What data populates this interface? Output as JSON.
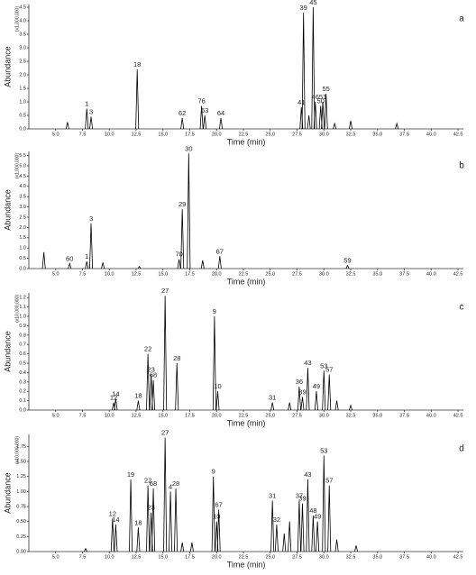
{
  "chart_data": [
    {
      "type": "line",
      "panel_label": "a",
      "ylabel": "Abundance",
      "multiplier": "(x1,000,000)",
      "xlabel": "Time (min)",
      "xlim": [
        2.5,
        43
      ],
      "ylim": [
        0,
        4.6
      ],
      "xticks": [
        {
          "value": 5,
          "label": "5.0"
        },
        {
          "value": 7.5,
          "label": "7.5"
        },
        {
          "value": 10,
          "label": "10.0"
        },
        {
          "value": 12.5,
          "label": "12.5"
        },
        {
          "value": 15,
          "label": "15.0"
        },
        {
          "value": 17.5,
          "label": "17.5"
        },
        {
          "value": 20,
          "label": "20.0"
        },
        {
          "value": 22.5,
          "label": "22.5"
        },
        {
          "value": 25,
          "label": "25.0"
        },
        {
          "value": 27.5,
          "label": "27.5"
        },
        {
          "value": 30,
          "label": "30.0"
        },
        {
          "value": 32.5,
          "label": "32.5"
        },
        {
          "value": 35,
          "label": "35.0"
        },
        {
          "value": 37.5,
          "label": "37.5"
        },
        {
          "value": 40,
          "label": "40.0"
        },
        {
          "value": 42.5,
          "label": "42.5"
        }
      ],
      "yticks": [
        {
          "value": 0,
          "label": "0.0"
        },
        {
          "value": 0.5,
          "label": "0.5"
        },
        {
          "value": 1,
          "label": "1.0"
        },
        {
          "value": 1.5,
          "label": "1.5"
        },
        {
          "value": 2,
          "label": "2.0"
        },
        {
          "value": 2.5,
          "label": "2.5"
        },
        {
          "value": 3,
          "label": "3.0"
        },
        {
          "value": 3.5,
          "label": "3.5"
        },
        {
          "value": 4,
          "label": "4.0"
        },
        {
          "value": 4.5,
          "label": "4.5"
        }
      ],
      "color": "#000000",
      "x": [
        6.1,
        7.9,
        8.3,
        12.6,
        16.8,
        18.6,
        18.9,
        20.4,
        27.9,
        28.1,
        28.6,
        29.0,
        29.2,
        29.7,
        29.9,
        30.2,
        31.0,
        32.5,
        36.8
      ],
      "values": [
        0.25,
        0.75,
        0.45,
        2.2,
        0.4,
        0.85,
        0.5,
        0.4,
        0.8,
        4.3,
        0.5,
        4.5,
        1.0,
        0.85,
        1.0,
        1.3,
        0.2,
        0.3,
        0.2
      ],
      "labels": [
        null,
        "1",
        "3",
        "18",
        "62",
        "76",
        "63",
        "64",
        "41",
        "39",
        null,
        "45",
        "46",
        "50",
        "51",
        "55",
        null,
        null,
        null
      ]
    },
    {
      "type": "line",
      "panel_label": "b",
      "ylabel": "Abundance",
      "multiplier": "(x1,000,000)",
      "xlabel": "Time (min)",
      "xlim": [
        2.5,
        43
      ],
      "ylim": [
        0,
        5.7
      ],
      "xticks": [
        {
          "value": 5,
          "label": "5.0"
        },
        {
          "value": 7.5,
          "label": "7.5"
        },
        {
          "value": 10,
          "label": "10.0"
        },
        {
          "value": 12.5,
          "label": "12.5"
        },
        {
          "value": 15,
          "label": "15.0"
        },
        {
          "value": 17.5,
          "label": "17.5"
        },
        {
          "value": 20,
          "label": "20.0"
        },
        {
          "value": 22.5,
          "label": "22.5"
        },
        {
          "value": 25,
          "label": "25.0"
        },
        {
          "value": 27.5,
          "label": "27.5"
        },
        {
          "value": 30,
          "label": "30.0"
        },
        {
          "value": 32.5,
          "label": "32.5"
        },
        {
          "value": 35,
          "label": "35.0"
        },
        {
          "value": 37.5,
          "label": "37.5"
        },
        {
          "value": 40,
          "label": "40.0"
        },
        {
          "value": 42.5,
          "label": "42.5"
        }
      ],
      "yticks": [
        {
          "value": 0,
          "label": "0.0"
        },
        {
          "value": 0.5,
          "label": "0.5"
        },
        {
          "value": 1,
          "label": "1.0"
        },
        {
          "value": 1.5,
          "label": "1.5"
        },
        {
          "value": 2,
          "label": "2.0"
        },
        {
          "value": 2.5,
          "label": "2.5"
        },
        {
          "value": 3,
          "label": "3.0"
        },
        {
          "value": 3.5,
          "label": "3.5"
        },
        {
          "value": 4,
          "label": "4.0"
        },
        {
          "value": 4.5,
          "label": "4.5"
        },
        {
          "value": 5,
          "label": "5.0"
        },
        {
          "value": 5.5,
          "label": "5.5"
        }
      ],
      "color": "#000000",
      "x": [
        3.9,
        6.3,
        7.9,
        8.3,
        9.4,
        12.8,
        16.5,
        16.8,
        17.4,
        18.7,
        20.3,
        32.2
      ],
      "values": [
        0.8,
        0.25,
        0.35,
        2.2,
        0.3,
        0.1,
        0.45,
        2.9,
        5.6,
        0.4,
        0.6,
        0.15
      ],
      "labels": [
        null,
        "60",
        "1",
        "3",
        null,
        null,
        "70",
        "29",
        "30",
        null,
        "67",
        "59"
      ]
    },
    {
      "type": "line",
      "panel_label": "c",
      "ylabel": "Abundance",
      "multiplier": "(x10,000,000)",
      "xlabel": "Time (min)",
      "xlim": [
        2.5,
        43
      ],
      "ylim": [
        0,
        1.25
      ],
      "xticks": [
        {
          "value": 5,
          "label": "5.0"
        },
        {
          "value": 7.5,
          "label": "7.5"
        },
        {
          "value": 10,
          "label": "10.0"
        },
        {
          "value": 12.5,
          "label": "12.5"
        },
        {
          "value": 15,
          "label": "15.0"
        },
        {
          "value": 17.5,
          "label": "17.5"
        },
        {
          "value": 20,
          "label": "20.0"
        },
        {
          "value": 22.5,
          "label": "22.5"
        },
        {
          "value": 25,
          "label": "25.0"
        },
        {
          "value": 27.5,
          "label": "27.5"
        },
        {
          "value": 30,
          "label": "30.0"
        },
        {
          "value": 32.5,
          "label": "32.5"
        },
        {
          "value": 35,
          "label": "35.0"
        },
        {
          "value": 37.5,
          "label": "37.5"
        },
        {
          "value": 40,
          "label": "40.0"
        },
        {
          "value": 42.5,
          "label": "42.5"
        }
      ],
      "yticks": [
        {
          "value": 0,
          "label": "0.0"
        },
        0.1,
        0.2,
        0.3,
        0.4,
        0.5,
        0.6,
        0.7,
        0.8,
        0.9,
        {
          "value": 1,
          "label": "1.0"
        },
        1.1,
        1.2
      ],
      "color": "#000000",
      "x": [
        10.4,
        10.6,
        12.7,
        13.6,
        13.9,
        14.1,
        15.2,
        16.3,
        19.8,
        20.1,
        25.2,
        26.8,
        27.7,
        28.0,
        28.5,
        29.3,
        30.0,
        30.5,
        31.2,
        32.5
      ],
      "values": [
        0.08,
        0.12,
        0.1,
        0.6,
        0.38,
        0.32,
        1.22,
        0.5,
        1.0,
        0.2,
        0.08,
        0.08,
        0.25,
        0.14,
        0.45,
        0.2,
        0.42,
        0.38,
        0.1,
        0.05
      ],
      "labels": [
        "12",
        "14",
        "18",
        "22",
        "23",
        "68",
        "27",
        "28",
        "9",
        "10",
        "31",
        null,
        "36",
        "39",
        "43",
        "49",
        "53",
        "57",
        null,
        null
      ]
    },
    {
      "type": "line",
      "panel_label": "d",
      "ylabel": "Abundance",
      "multiplier": "(x10,000,000)",
      "xlabel": "Time (min)",
      "xlim": [
        2.5,
        43
      ],
      "ylim": [
        0,
        1.95
      ],
      "xticks": [
        {
          "value": 5,
          "label": "5.0"
        },
        {
          "value": 7.5,
          "label": "7.5"
        },
        {
          "value": 10,
          "label": "10.0"
        },
        {
          "value": 12.5,
          "label": "12.5"
        },
        {
          "value": 15,
          "label": "15.0"
        },
        {
          "value": 17.5,
          "label": "17.5"
        },
        {
          "value": 20,
          "label": "20.0"
        },
        {
          "value": 22.5,
          "label": "22.5"
        },
        {
          "value": 25,
          "label": "25.0"
        },
        {
          "value": 27.5,
          "label": "27.5"
        },
        {
          "value": 30,
          "label": "30.0"
        },
        {
          "value": 32.5,
          "label": "32.5"
        },
        {
          "value": 35,
          "label": "35.0"
        },
        {
          "value": 37.5,
          "label": "37.5"
        },
        {
          "value": 40,
          "label": "40.0"
        },
        {
          "value": 42.5,
          "label": "42.5"
        }
      ],
      "yticks": [
        {
          "value": 0,
          "label": "0.00"
        },
        0.25,
        {
          "value": 0.5,
          "label": "0.50"
        },
        0.75,
        {
          "value": 1,
          "label": "1.00"
        },
        1.25,
        {
          "value": 1.5,
          "label": "1.50"
        },
        1.75
      ],
      "color": "#000000",
      "x": [
        7.8,
        10.3,
        10.6,
        12.0,
        12.7,
        13.6,
        13.9,
        14.1,
        15.2,
        15.7,
        16.2,
        16.8,
        17.7,
        19.7,
        20.0,
        20.2,
        25.2,
        25.6,
        26.3,
        26.8,
        27.7,
        28.0,
        28.5,
        29.0,
        29.4,
        30.0,
        30.5,
        31.2,
        33.0
      ],
      "values": [
        0.05,
        0.55,
        0.45,
        1.2,
        0.4,
        1.1,
        0.65,
        1.05,
        1.9,
        1.0,
        1.05,
        0.15,
        0.15,
        1.25,
        0.5,
        0.7,
        0.85,
        0.45,
        0.3,
        0.5,
        0.85,
        0.8,
        1.2,
        0.6,
        0.5,
        1.6,
        1.1,
        0.2,
        0.1
      ],
      "labels": [
        null,
        "12",
        "14",
        "19",
        "18",
        "22",
        "23",
        "68",
        "27",
        "4",
        "28",
        null,
        null,
        "9",
        "10",
        "67",
        "31",
        "32",
        null,
        null,
        "37",
        "39",
        "43",
        "48",
        "49",
        "53",
        "57",
        null,
        null
      ]
    }
  ]
}
